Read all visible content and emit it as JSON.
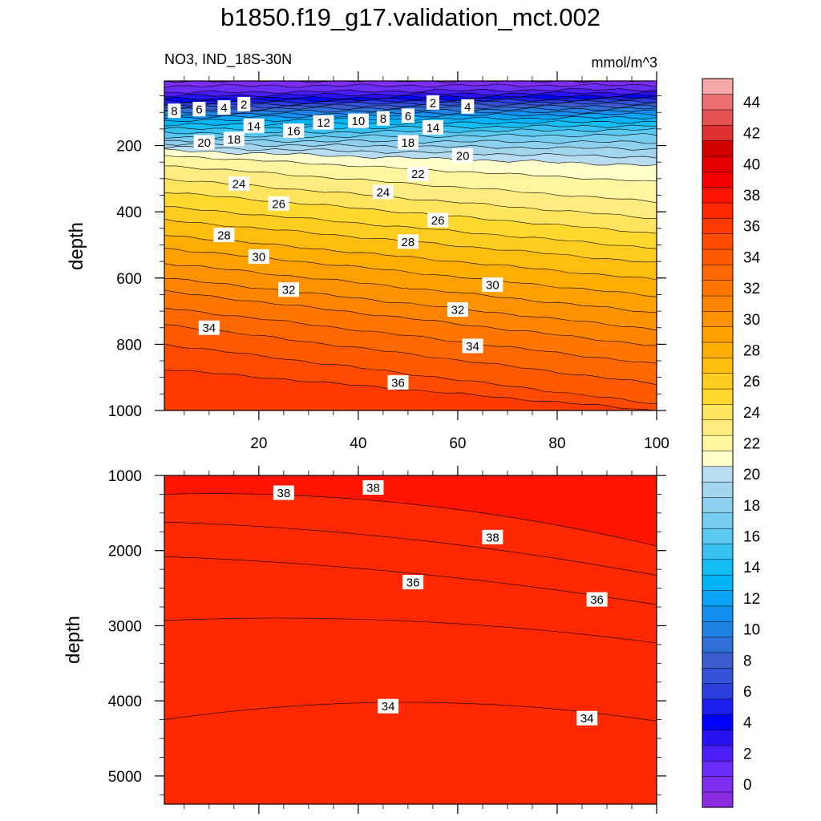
{
  "title": "b1850.f19_g17.validation_mct.002",
  "left_label": "NO3, IND_18S-30N",
  "right_label": "mmol/m^3",
  "chart_data": [
    {
      "type": "contour",
      "panel": "upper",
      "ylabel": "depth",
      "xlabel": "",
      "xlim": [
        1,
        100
      ],
      "ylim": [
        1000,
        5
      ],
      "x_ticks": [
        "20",
        "40",
        "60",
        "80",
        "100"
      ],
      "y_ticks": [
        "200",
        "400",
        "600",
        "800",
        "1000"
      ],
      "contour_interval": 1,
      "contour_levels": [
        {
          "value": 0,
          "left": 5,
          "right": 5
        },
        {
          "value": 1,
          "left": 20,
          "right": 18
        },
        {
          "value": 2,
          "left": 40,
          "right": 30
        },
        {
          "value": 3,
          "left": 50,
          "right": 40
        },
        {
          "value": 4,
          "left": 60,
          "right": 48
        },
        {
          "value": 5,
          "left": 66,
          "right": 55
        },
        {
          "value": 6,
          "left": 72,
          "right": 60
        },
        {
          "value": 7,
          "left": 78,
          "right": 66
        },
        {
          "value": 8,
          "left": 85,
          "right": 72
        },
        {
          "value": 9,
          "left": 92,
          "right": 80
        },
        {
          "value": 10,
          "left": 100,
          "right": 88
        },
        {
          "value": 11,
          "left": 108,
          "right": 96
        },
        {
          "value": 12,
          "left": 115,
          "right": 105
        },
        {
          "value": 13,
          "left": 125,
          "right": 115
        },
        {
          "value": 14,
          "left": 138,
          "right": 128
        },
        {
          "value": 15,
          "left": 150,
          "right": 140
        },
        {
          "value": 16,
          "left": 163,
          "right": 152
        },
        {
          "value": 17,
          "left": 175,
          "right": 168
        },
        {
          "value": 18,
          "left": 185,
          "right": 190
        },
        {
          "value": 19,
          "left": 195,
          "right": 210
        },
        {
          "value": 20,
          "left": 205,
          "right": 235
        },
        {
          "value": 21,
          "left": 215,
          "right": 260
        },
        {
          "value": 22,
          "left": 230,
          "right": 310
        },
        {
          "value": 23,
          "left": 260,
          "right": 370
        },
        {
          "value": 24,
          "left": 300,
          "right": 420
        },
        {
          "value": 25,
          "left": 340,
          "right": 465
        },
        {
          "value": 26,
          "left": 385,
          "right": 510
        },
        {
          "value": 27,
          "left": 425,
          "right": 555
        },
        {
          "value": 28,
          "left": 470,
          "right": 605
        },
        {
          "value": 29,
          "left": 510,
          "right": 655
        },
        {
          "value": 30,
          "left": 555,
          "right": 705
        },
        {
          "value": 31,
          "left": 600,
          "right": 755
        },
        {
          "value": 32,
          "left": 640,
          "right": 805
        },
        {
          "value": 33,
          "left": 690,
          "right": 860
        },
        {
          "value": 34,
          "left": 740,
          "right": 920
        },
        {
          "value": 35,
          "left": 800,
          "right": 980
        },
        {
          "value": 36,
          "left": 875,
          "right": 1000
        }
      ],
      "labels": [
        {
          "text": "8",
          "x": 3,
          "y": 95
        },
        {
          "text": "6",
          "x": 8,
          "y": 90
        },
        {
          "text": "4",
          "x": 13,
          "y": 85
        },
        {
          "text": "2",
          "x": 17,
          "y": 75
        },
        {
          "text": "14",
          "x": 19,
          "y": 140
        },
        {
          "text": "16",
          "x": 27,
          "y": 155
        },
        {
          "text": "12",
          "x": 33,
          "y": 130
        },
        {
          "text": "10",
          "x": 40,
          "y": 125
        },
        {
          "text": "8",
          "x": 45,
          "y": 118
        },
        {
          "text": "6",
          "x": 50,
          "y": 110
        },
        {
          "text": "2",
          "x": 55,
          "y": 70
        },
        {
          "text": "4",
          "x": 62,
          "y": 82
        },
        {
          "text": "14",
          "x": 55,
          "y": 145
        },
        {
          "text": "20",
          "x": 9,
          "y": 190
        },
        {
          "text": "18",
          "x": 15,
          "y": 180
        },
        {
          "text": "18",
          "x": 50,
          "y": 190
        },
        {
          "text": "20",
          "x": 61,
          "y": 230
        },
        {
          "text": "22",
          "x": 52,
          "y": 285
        },
        {
          "text": "24",
          "x": 16,
          "y": 315
        },
        {
          "text": "24",
          "x": 45,
          "y": 340
        },
        {
          "text": "26",
          "x": 24,
          "y": 375
        },
        {
          "text": "26",
          "x": 56,
          "y": 425
        },
        {
          "text": "28",
          "x": 13,
          "y": 470
        },
        {
          "text": "28",
          "x": 50,
          "y": 490
        },
        {
          "text": "30",
          "x": 20,
          "y": 535
        },
        {
          "text": "30",
          "x": 67,
          "y": 620
        },
        {
          "text": "32",
          "x": 26,
          "y": 635
        },
        {
          "text": "32",
          "x": 60,
          "y": 695
        },
        {
          "text": "34",
          "x": 10,
          "y": 750
        },
        {
          "text": "34",
          "x": 63,
          "y": 805
        },
        {
          "text": "36",
          "x": 48,
          "y": 915
        }
      ]
    },
    {
      "type": "contour",
      "panel": "lower",
      "ylabel": "depth",
      "xlabel": "",
      "xlim": [
        1,
        100
      ],
      "ylim": [
        5375,
        1000
      ],
      "x_ticks": [],
      "y_ticks": [
        "1000",
        "2000",
        "3000",
        "4000",
        "5000"
      ],
      "contour_interval": 1,
      "contour_levels": [
        {
          "value": 33.5,
          "left": 4250,
          "mid": 4020,
          "right": 4270
        },
        {
          "value": 34.5,
          "left": 2930,
          "mid": 2940,
          "right": 3230
        },
        {
          "value": 35.5,
          "left": 2080,
          "mid": 2300,
          "right": 2720
        },
        {
          "value": 36.5,
          "left": 1620,
          "mid": 1850,
          "right": 2330
        },
        {
          "value": 37.5,
          "left": 1250,
          "mid": 1380,
          "right": 1940
        }
      ],
      "labels": [
        {
          "text": "38",
          "x": 25,
          "y": 1230
        },
        {
          "text": "38",
          "x": 43,
          "y": 1160
        },
        {
          "text": "38",
          "x": 67,
          "y": 1820
        },
        {
          "text": "36",
          "x": 51,
          "y": 2420
        },
        {
          "text": "36",
          "x": 88,
          "y": 2650
        },
        {
          "text": "34",
          "x": 46,
          "y": 4070
        },
        {
          "text": "34",
          "x": 86,
          "y": 4230
        }
      ]
    }
  ],
  "colorbar": {
    "type": "colorbar",
    "min": -1,
    "max": 46,
    "tick_labels": [
      "0",
      "2",
      "4",
      "6",
      "8",
      "10",
      "12",
      "14",
      "16",
      "18",
      "20",
      "22",
      "24",
      "26",
      "28",
      "30",
      "32",
      "34",
      "36",
      "38",
      "40",
      "42",
      "44"
    ],
    "colors": [
      "#8a2be2",
      "#7e2cf0",
      "#6a2cf8",
      "#4a1ef5",
      "#2a12f0",
      "#0000ff",
      "#1e1eec",
      "#2a3ee0",
      "#3450d6",
      "#3c5cd0",
      "#2e6fd8",
      "#1f83e6",
      "#138ff0",
      "#0aa3f5",
      "#00b4f6",
      "#14bdf4",
      "#38c2f2",
      "#5ac8f0",
      "#76cdef",
      "#8fd0ee",
      "#a3d5ee",
      "#b8dcf0",
      "#ffffcc",
      "#fff5a0",
      "#ffec80",
      "#ffe460",
      "#ffd830",
      "#ffcc20",
      "#ffbd10",
      "#ffad00",
      "#ffa000",
      "#ff9200",
      "#ff8400",
      "#ff7600",
      "#ff6800",
      "#ff5a00",
      "#ff4a00",
      "#ff3a00",
      "#ff2800",
      "#ff1400",
      "#f40000",
      "#e40000",
      "#d40000",
      "#de3030",
      "#e55050",
      "#ec7070",
      "#f7a8a8"
    ]
  }
}
